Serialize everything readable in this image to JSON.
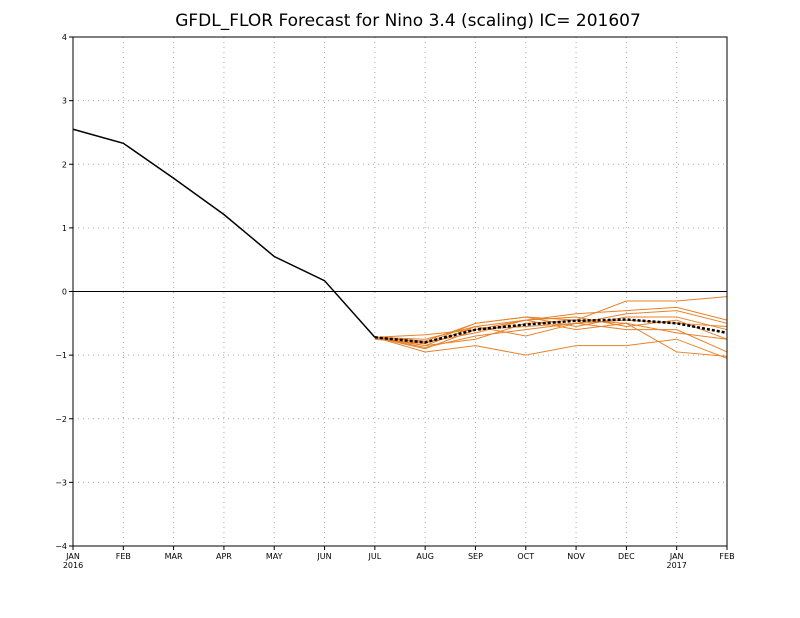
{
  "chart_data": {
    "type": "line",
    "title": "GFDL_FLOR Forecast for Nino 3.4 (scaling) IC= 201607",
    "xlabel": "",
    "ylabel": "",
    "ylim": [
      -4,
      4
    ],
    "yticks": [
      "4",
      "3",
      "2",
      "1",
      "0",
      "−1",
      "−2",
      "−3",
      "−4"
    ],
    "y_tick_values": [
      4,
      3,
      2,
      1,
      0,
      -1,
      -2,
      -3,
      -4
    ],
    "x_ticks": [
      {
        "label": "JAN",
        "year": "2016"
      },
      {
        "label": "FEB",
        "year": ""
      },
      {
        "label": "MAR",
        "year": ""
      },
      {
        "label": "APR",
        "year": ""
      },
      {
        "label": "MAY",
        "year": ""
      },
      {
        "label": "JUN",
        "year": ""
      },
      {
        "label": "JUL",
        "year": ""
      },
      {
        "label": "AUG",
        "year": ""
      },
      {
        "label": "SEP",
        "year": ""
      },
      {
        "label": "OCT",
        "year": ""
      },
      {
        "label": "NOV",
        "year": ""
      },
      {
        "label": "DEC",
        "year": ""
      },
      {
        "label": "JAN",
        "year": "2017"
      },
      {
        "label": "FEB",
        "year": ""
      }
    ],
    "grid": true,
    "zero_line": true,
    "colors": {
      "observed": "#000000",
      "member": "#e8822a",
      "mean": "#000000"
    },
    "observed": {
      "x": [
        "2016-01",
        "2016-02",
        "2016-03",
        "2016-04",
        "2016-05",
        "2016-06",
        "2016-07"
      ],
      "values": [
        2.55,
        2.33,
        1.78,
        1.21,
        0.55,
        0.17,
        -0.72
      ]
    },
    "ensemble_members": {
      "x": [
        "2016-07",
        "2016-08",
        "2016-09",
        "2016-10",
        "2016-11",
        "2016-12",
        "2017-01",
        "2017-02"
      ],
      "series": [
        {
          "values": [
            -0.72,
            -0.78,
            -0.5,
            -0.4,
            -0.45,
            -0.15,
            -0.15,
            -0.08
          ]
        },
        {
          "values": [
            -0.72,
            -0.85,
            -0.55,
            -0.45,
            -0.35,
            -0.3,
            -0.25,
            -0.45
          ]
        },
        {
          "values": [
            -0.72,
            -0.9,
            -0.6,
            -0.55,
            -0.5,
            -0.45,
            -0.5,
            -0.55
          ]
        },
        {
          "values": [
            -0.72,
            -0.8,
            -0.65,
            -0.45,
            -0.6,
            -0.5,
            -0.65,
            -0.75
          ]
        },
        {
          "values": [
            -0.72,
            -0.95,
            -0.85,
            -1.0,
            -0.85,
            -0.85,
            -0.75,
            -1.05
          ]
        },
        {
          "values": [
            -0.72,
            -0.85,
            -0.75,
            -0.5,
            -0.45,
            -0.5,
            -0.95,
            -1.02
          ]
        },
        {
          "values": [
            -0.72,
            -0.75,
            -0.55,
            -0.7,
            -0.5,
            -0.35,
            -0.3,
            -0.5
          ]
        },
        {
          "values": [
            -0.72,
            -0.68,
            -0.6,
            -0.45,
            -0.4,
            -0.55,
            -0.45,
            -0.75
          ]
        },
        {
          "values": [
            -0.75,
            -0.82,
            -0.5,
            -0.4,
            -0.55,
            -0.4,
            -0.4,
            -0.6
          ]
        },
        {
          "values": [
            -0.72,
            -0.88,
            -0.7,
            -0.6,
            -0.5,
            -0.6,
            -0.6,
            -0.95
          ]
        }
      ]
    },
    "ensemble_mean": {
      "x": [
        "2016-07",
        "2016-08",
        "2016-09",
        "2016-10",
        "2016-11",
        "2016-12",
        "2017-01",
        "2017-02"
      ],
      "values": [
        -0.72,
        -0.8,
        -0.6,
        -0.52,
        -0.46,
        -0.44,
        -0.5,
        -0.65
      ]
    }
  }
}
